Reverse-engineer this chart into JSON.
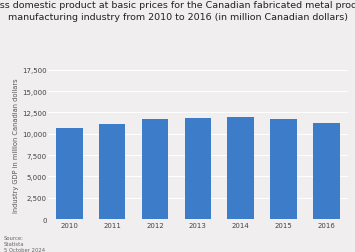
{
  "title_line1": "Gross domestic product at basic prices for the Canadian fabricated metal product",
  "title_line2": "manufacturing industry from 2010 to 2016 (in million Canadian dollars)",
  "years": [
    "2010",
    "2011",
    "2012",
    "2013",
    "2014",
    "2015",
    "2016"
  ],
  "values": [
    10650,
    11200,
    11700,
    11850,
    11980,
    11750,
    11250
  ],
  "bar_color": "#3d7cc9",
  "ylabel": "Industry GDP in million Canadian dollars",
  "ylim": [
    0,
    17500
  ],
  "yticks": [
    0,
    2500,
    5000,
    7500,
    10000,
    12500,
    15000,
    17500
  ],
  "ytick_labels": [
    "0",
    "2,500",
    "5,000",
    "7,500",
    "10,000",
    "12,500",
    "15,000",
    "17,500"
  ],
  "bg_color": "#f0eeee",
  "plot_bg_color": "#f0eeee",
  "source_text": "Source:\nStatista\n5 October 2024",
  "title_fontsize": 6.8,
  "ylabel_fontsize": 4.8,
  "tick_fontsize": 5.0,
  "source_fontsize": 3.8
}
